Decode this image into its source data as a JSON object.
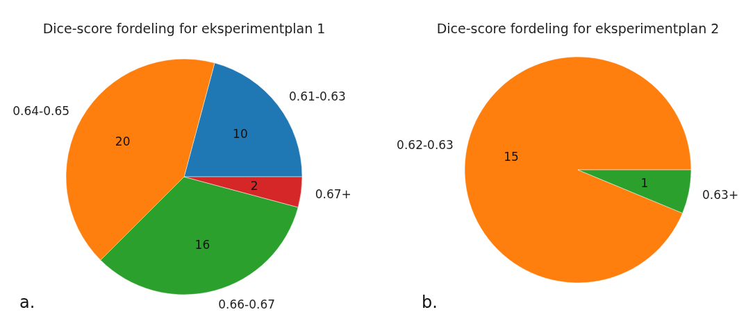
{
  "chart_data": [
    {
      "type": "pie",
      "title": "Dice-score fordeling for eksperimentplan 1",
      "categories": [
        "0.61-0.63",
        "0.64-0.65",
        "0.66-0.67",
        "0.67+"
      ],
      "values": [
        10,
        20,
        16,
        2
      ],
      "colors": [
        "#1f77b4",
        "#ff7f0e",
        "#2ca02c",
        "#d62728"
      ],
      "data_labels": true,
      "annotations": [
        "a."
      ]
    },
    {
      "type": "pie",
      "title": "Dice-score fordeling for eksperimentplan 2",
      "categories": [
        "0.62-0.63",
        "0.63+"
      ],
      "values": [
        15,
        1
      ],
      "colors": [
        "#ff7f0e",
        "#2ca02c"
      ],
      "data_labels": true,
      "annotations": [
        "b."
      ]
    }
  ]
}
